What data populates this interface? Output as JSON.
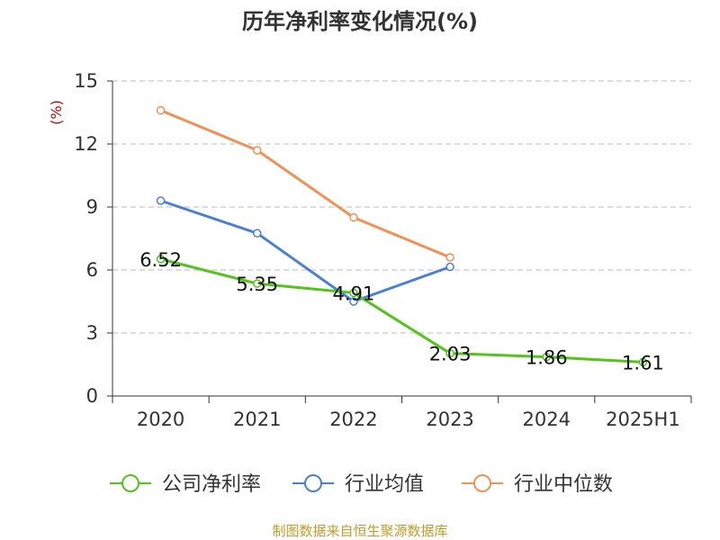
{
  "title": "历年净利率变化情况(%)",
  "source": "制图数据来自恒生聚源数据库",
  "colors": {
    "axis": "#333333",
    "grid": "#bbbbbb",
    "unit": "#cc0000",
    "source": "#c49a2a"
  },
  "chart_data": {
    "type": "line",
    "title": "历年净利率变化情况(%)",
    "ylabel": "(%)",
    "xlabel": "",
    "categories": [
      "2020",
      "2021",
      "2022",
      "2023",
      "2024",
      "2025H1"
    ],
    "ylim": [
      0,
      15
    ],
    "yticks": [
      0,
      3,
      6,
      9,
      12,
      15
    ],
    "grid": true,
    "legend_position": "bottom",
    "series": [
      {
        "name": "公司净利率",
        "color": "#52c41a",
        "values": [
          6.52,
          5.35,
          4.91,
          2.03,
          1.86,
          1.61
        ],
        "labels": [
          "6.52",
          "5.35",
          "4.91",
          "2.03",
          "1.86",
          "1.61"
        ]
      },
      {
        "name": "行业均值",
        "color": "#4a7fd8",
        "values": [
          9.3,
          7.75,
          4.5,
          6.15,
          null,
          null
        ]
      },
      {
        "name": "行业中位数",
        "color": "#f39056",
        "values": [
          13.6,
          11.7,
          8.5,
          6.6,
          null,
          null
        ]
      }
    ]
  }
}
